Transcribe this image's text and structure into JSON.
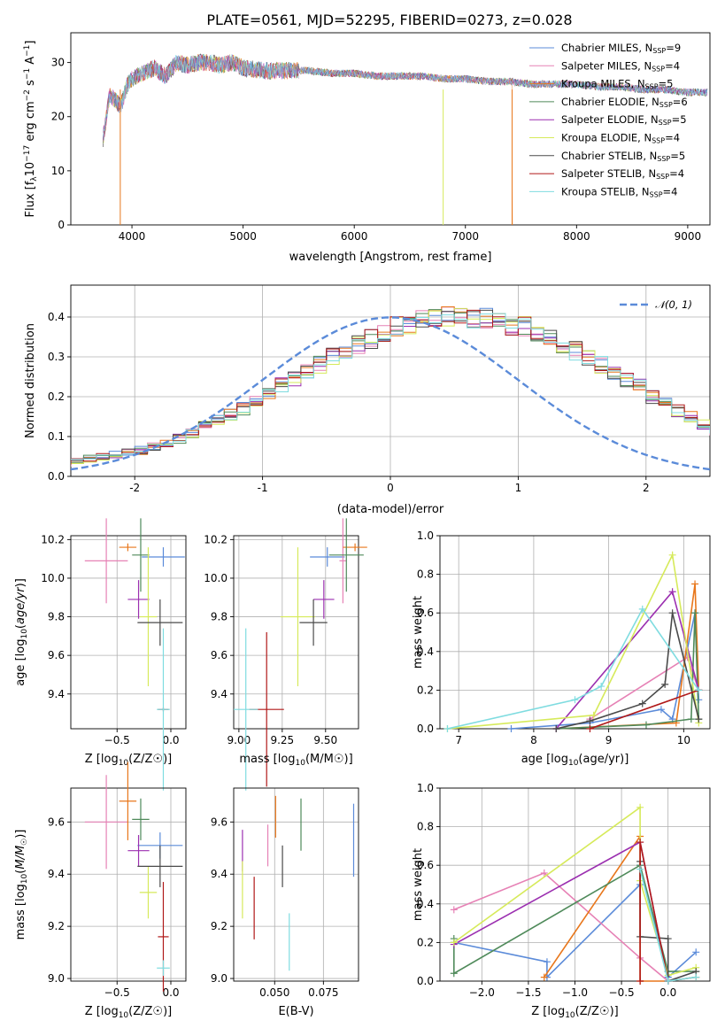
{
  "figure_title": "PLATE=0561, MJD=52295, FIBERID=0273, z=0.028",
  "colors": {
    "chabrier_miles": "#5b8bd9",
    "salpeter_miles": "#e681b5",
    "kroupa_miles": "#e8771c",
    "chabrier_elodie": "#4f8a5a",
    "salpeter_elodie": "#9b2fb0",
    "kroupa_elodie": "#d6ea5a",
    "chabrier_stelib": "#4a4a4a",
    "salpeter_stelib": "#b01818",
    "kroupa_stelib": "#7fdce0",
    "gaussian": "#5b8bd9",
    "data": "#808080"
  },
  "chart_data": [
    {
      "id": "spectrum",
      "type": "line",
      "xlabel": "wavelength [Angstrom, rest frame]",
      "ylabel": "Flux [f_λ 10^{-17} erg cm^{-2} s^{-1} A^{-1}]",
      "xlim": [
        3450,
        9200
      ],
      "ylim": [
        0,
        35.5
      ],
      "xticks": [
        4000,
        5000,
        6000,
        7000,
        8000,
        9000
      ],
      "yticks": [
        0,
        10,
        20,
        30
      ],
      "legend_position": "upper right",
      "legend": [
        {
          "label": "Chabrier MILES, N",
          "sub": "SSP",
          "tail": "=9",
          "color_key": "chabrier_miles"
        },
        {
          "label": "Salpeter MILES, N",
          "sub": "SSP",
          "tail": "=4",
          "color_key": "salpeter_miles"
        },
        {
          "label": "Kroupa MILES, N",
          "sub": "SSP",
          "tail": "=5",
          "color_key": "kroupa_miles"
        },
        {
          "label": "Chabrier ELODIE, N",
          "sub": "SSP",
          "tail": "=6",
          "color_key": "chabrier_elodie"
        },
        {
          "label": "Salpeter ELODIE, N",
          "sub": "SSP",
          "tail": "=5",
          "color_key": "salpeter_elodie"
        },
        {
          "label": "Kroupa ELODIE, N",
          "sub": "SSP",
          "tail": "=4",
          "color_key": "kroupa_elodie"
        },
        {
          "label": "Chabrier STELIB, N",
          "sub": "SSP",
          "tail": "=5",
          "color_key": "chabrier_stelib"
        },
        {
          "label": "Salpeter STELIB, N",
          "sub": "SSP",
          "tail": "=4",
          "color_key": "salpeter_stelib"
        },
        {
          "label": "Kroupa STELIB, N",
          "sub": "SSP",
          "tail": "=4",
          "color_key": "kroupa_stelib"
        }
      ],
      "series_outline": {
        "x": [
          3740,
          3800,
          3900,
          3960,
          4000,
          4100,
          4200,
          4300,
          4400,
          4500,
          4600,
          4700,
          4800,
          4900,
          5000,
          5200,
          5400,
          5600,
          5800,
          6000,
          6200,
          6400,
          6600,
          6800,
          7000,
          7200,
          7400,
          7600,
          7800,
          8000,
          8200,
          8400,
          8600,
          8800,
          9000,
          9200
        ],
        "y": [
          16,
          24,
          22,
          26,
          27,
          28,
          29,
          27.5,
          30,
          29.5,
          30,
          30,
          29.5,
          30,
          29,
          28.5,
          28.5,
          28.5,
          28,
          28,
          27.5,
          27.5,
          27.5,
          27,
          27,
          26.5,
          26.5,
          26,
          26,
          26,
          25.5,
          25.5,
          25,
          25,
          24.5,
          24.5
        ]
      },
      "notable_features": [
        {
          "x": 3895,
          "y": 0,
          "note": "drop to zero (Kroupa MILES)"
        },
        {
          "x": 6800,
          "y": 0,
          "note": "drop to zero (Kroupa ELODIE)"
        },
        {
          "x": 7420,
          "y": 0,
          "note": "drop to zero (Kroupa MILES)"
        }
      ]
    },
    {
      "id": "residuals",
      "type": "step",
      "xlabel": "(data-model)/error",
      "ylabel": "Normed distribution",
      "xlim": [
        -2.5,
        2.5
      ],
      "ylim": [
        0,
        0.48
      ],
      "xticks": [
        -2,
        -1,
        0,
        1,
        2
      ],
      "yticks": [
        0.0,
        0.1,
        0.2,
        0.3,
        0.4
      ],
      "legend_position": "upper right",
      "legend_label": "𝒩(0, 1)",
      "gaussian": {
        "mean": 0,
        "sigma": 1
      },
      "bin_width": 0.1,
      "base_hist": [
        0.02,
        0.02,
        0.025,
        0.03,
        0.035,
        0.04,
        0.045,
        0.05,
        0.055,
        0.06,
        0.065,
        0.075,
        0.085,
        0.095,
        0.11,
        0.125,
        0.14,
        0.155,
        0.17,
        0.19,
        0.21,
        0.23,
        0.245,
        0.26,
        0.28,
        0.3,
        0.31,
        0.33,
        0.345,
        0.355,
        0.375,
        0.38,
        0.39,
        0.395,
        0.4,
        0.4,
        0.4,
        0.395,
        0.39,
        0.38,
        0.375,
        0.36,
        0.345,
        0.33,
        0.315,
        0.3,
        0.28,
        0.26,
        0.24,
        0.225,
        0.2,
        0.18,
        0.165,
        0.15,
        0.13,
        0.115,
        0.1,
        0.09,
        0.08,
        0.07,
        0.06,
        0.055,
        0.05,
        0.045,
        0.04,
        0.035,
        0.03,
        0.03,
        0.025,
        0.025
      ]
    },
    {
      "id": "age_vs_Z",
      "type": "errorbar",
      "xlabel_main": "Z [log",
      "xlabel_sub": "10",
      "xlabel_tail": "(Z/Z☉)]",
      "ylabel": "age [log10(age/yr)]",
      "xlim": [
        -0.93,
        0.14
      ],
      "ylim": [
        9.22,
        10.22
      ],
      "xticks": [
        -0.5,
        0.0
      ],
      "xtick_labels": [
        "−0.5",
        "0.0"
      ],
      "yticks": [
        9.4,
        9.6,
        9.8,
        10.0,
        10.2
      ],
      "points": [
        {
          "color_key": "chabrier_miles",
          "x": -0.07,
          "y": 10.11,
          "xerr": 0.2,
          "yerr": 0.05
        },
        {
          "color_key": "salpeter_miles",
          "x": -0.6,
          "y": 10.09,
          "xerr": 0.2,
          "yerr": 0.22
        },
        {
          "color_key": "kroupa_miles",
          "x": -0.4,
          "y": 10.16,
          "xerr": 0.08,
          "yerr": 0.02
        },
        {
          "color_key": "chabrier_elodie",
          "x": -0.28,
          "y": 10.12,
          "xerr": 0.08,
          "yerr": 0.19
        },
        {
          "color_key": "salpeter_elodie",
          "x": -0.3,
          "y": 9.89,
          "xerr": 0.1,
          "yerr": 0.1
        },
        {
          "color_key": "kroupa_elodie",
          "x": -0.21,
          "y": 9.8,
          "xerr": 0.08,
          "yerr": 0.36
        },
        {
          "color_key": "chabrier_stelib",
          "x": -0.1,
          "y": 9.77,
          "xerr": 0.21,
          "yerr": 0.12
        },
        {
          "color_key": "salpeter_stelib",
          "x": -0.07,
          "y": 9.32,
          "xerr": 0.05,
          "yerr": 0.01
        },
        {
          "color_key": "kroupa_stelib",
          "x": -0.07,
          "y": 9.32,
          "xerr": 0.06,
          "yerr": 0.42
        }
      ]
    },
    {
      "id": "age_vs_mass",
      "type": "errorbar",
      "xlabel_main": "mass [log",
      "xlabel_sub": "10",
      "xlabel_tail": "(M/M☉)]",
      "xlim": [
        8.97,
        9.69
      ],
      "ylim": [
        9.22,
        10.22
      ],
      "xticks": [
        9.0,
        9.25,
        9.5
      ],
      "xtick_labels": [
        "9.00",
        "9.25",
        "9.50"
      ],
      "yticks": [
        9.4,
        9.6,
        9.8,
        10.0,
        10.2
      ],
      "points": [
        {
          "color_key": "chabrier_miles",
          "x": 9.51,
          "y": 10.11,
          "xerr": 0.1,
          "yerr": 0.05
        },
        {
          "color_key": "salpeter_miles",
          "x": 9.6,
          "y": 10.09,
          "xerr": 0.02,
          "yerr": 0.22
        },
        {
          "color_key": "kroupa_miles",
          "x": 9.67,
          "y": 10.16,
          "xerr": 0.07,
          "yerr": 0.02
        },
        {
          "color_key": "chabrier_elodie",
          "x": 9.62,
          "y": 10.12,
          "xerr": 0.1,
          "yerr": 0.19
        },
        {
          "color_key": "salpeter_elodie",
          "x": 9.49,
          "y": 9.89,
          "xerr": 0.06,
          "yerr": 0.1
        },
        {
          "color_key": "kroupa_elodie",
          "x": 9.34,
          "y": 9.8,
          "xerr": 0.1,
          "yerr": 0.36
        },
        {
          "color_key": "chabrier_stelib",
          "x": 9.43,
          "y": 9.77,
          "xerr": 0.08,
          "yerr": 0.12
        },
        {
          "color_key": "salpeter_stelib",
          "x": 9.16,
          "y": 9.32,
          "xerr": 0.1,
          "yerr": 0.4
        },
        {
          "color_key": "kroupa_stelib",
          "x": 9.04,
          "y": 9.32,
          "xerr": 0.07,
          "yerr": 0.42
        }
      ]
    },
    {
      "id": "weight_vs_age",
      "type": "line",
      "xlabel_main": "age  [log",
      "xlabel_sub": "10",
      "xlabel_tail": "(age/yr)]",
      "ylabel": "mass weight",
      "xlim": [
        6.75,
        10.35
      ],
      "ylim": [
        0,
        1.0
      ],
      "xticks": [
        7,
        8,
        9,
        10
      ],
      "yticks": [
        0.0,
        0.2,
        0.4,
        0.6,
        0.8,
        1.0
      ],
      "series": [
        {
          "color_key": "chabrier_miles",
          "x": [
            7.7,
            8.75,
            9.7,
            9.85,
            10.15,
            10.2
          ],
          "y": [
            0.0,
            0.03,
            0.1,
            0.05,
            0.6,
            0.15
          ]
        },
        {
          "color_key": "salpeter_miles",
          "x": [
            8.75,
            10.05,
            10.2
          ],
          "y": [
            0.05,
            0.37,
            0.2
          ]
        },
        {
          "color_key": "kroupa_miles",
          "x": [
            8.3,
            9.9,
            10.15,
            10.2
          ],
          "y": [
            0.0,
            0.03,
            0.75,
            0.2
          ]
        },
        {
          "color_key": "chabrier_elodie",
          "x": [
            8.3,
            9.5,
            10.1,
            10.15,
            10.2
          ],
          "y": [
            0.0,
            0.02,
            0.05,
            0.6,
            0.05
          ]
        },
        {
          "color_key": "salpeter_elodie",
          "x": [
            8.3,
            9.85,
            10.2
          ],
          "y": [
            0.0,
            0.71,
            0.2
          ]
        },
        {
          "color_key": "kroupa_elodie",
          "x": [
            6.85,
            8.8,
            9.85,
            10.2
          ],
          "y": [
            0.0,
            0.07,
            0.9,
            0.03
          ]
        },
        {
          "color_key": "chabrier_stelib",
          "x": [
            8.3,
            8.75,
            9.45,
            9.75,
            9.85,
            10.2
          ],
          "y": [
            0.0,
            0.04,
            0.13,
            0.23,
            0.6,
            0.05
          ]
        },
        {
          "color_key": "salpeter_stelib",
          "x": [
            8.75,
            10.2
          ],
          "y": [
            0.0,
            0.2
          ]
        },
        {
          "color_key": "kroupa_stelib",
          "x": [
            6.85,
            8.55,
            8.9,
            9.45,
            10.2
          ],
          "y": [
            0.0,
            0.15,
            0.22,
            0.62,
            0.2
          ]
        }
      ]
    },
    {
      "id": "mass_vs_Z",
      "type": "errorbar",
      "xlabel_main": "Z [log",
      "xlabel_sub": "10",
      "xlabel_tail": "(Z/Z☉)]",
      "ylabel": "mass [log10(M/M☉)]",
      "xlim": [
        -0.93,
        0.14
      ],
      "ylim": [
        8.99,
        9.73
      ],
      "xticks": [
        -0.5,
        0.0
      ],
      "xtick_labels": [
        "−0.5",
        "0.0"
      ],
      "yticks": [
        9.0,
        9.2,
        9.4,
        9.6
      ],
      "points": [
        {
          "color_key": "chabrier_miles",
          "x": -0.1,
          "y": 9.51,
          "xerr": 0.21,
          "yerr": 0.05
        },
        {
          "color_key": "salpeter_miles",
          "x": -0.6,
          "y": 9.6,
          "xerr": 0.2,
          "yerr": 0.18
        },
        {
          "color_key": "kroupa_miles",
          "x": -0.4,
          "y": 9.68,
          "xerr": 0.08,
          "yerr": 0.15
        },
        {
          "color_key": "chabrier_elodie",
          "x": -0.28,
          "y": 9.61,
          "xerr": 0.08,
          "yerr": 0.08
        },
        {
          "color_key": "salpeter_elodie",
          "x": -0.3,
          "y": 9.49,
          "xerr": 0.1,
          "yerr": 0.06
        },
        {
          "color_key": "kroupa_elodie",
          "x": -0.21,
          "y": 9.33,
          "xerr": 0.08,
          "yerr": 0.1
        },
        {
          "color_key": "chabrier_stelib",
          "x": -0.1,
          "y": 9.43,
          "xerr": 0.21,
          "yerr": 0.08
        },
        {
          "color_key": "salpeter_stelib",
          "x": -0.07,
          "y": 9.16,
          "xerr": 0.05,
          "yerr": 0.21
        },
        {
          "color_key": "kroupa_stelib",
          "x": -0.07,
          "y": 9.04,
          "xerr": 0.06,
          "yerr": 0.03
        }
      ]
    },
    {
      "id": "mass_vs_EBV",
      "type": "errorbar",
      "xlabel": "E(B-V)",
      "xlim": [
        0.029,
        0.093
      ],
      "ylim": [
        8.99,
        9.73
      ],
      "xticks": [
        0.05,
        0.075
      ],
      "xtick_labels": [
        "0.050",
        "0.075"
      ],
      "yticks": [
        9.0,
        9.2,
        9.4,
        9.6
      ],
      "points": [
        {
          "color_key": "chabrier_miles",
          "x": 0.0905,
          "y": 9.53,
          "xerr": 0.0,
          "yerr": 0.14
        },
        {
          "color_key": "salpeter_miles",
          "x": 0.0465,
          "y": 9.51,
          "xerr": 0.0,
          "yerr": 0.08
        },
        {
          "color_key": "kroupa_miles",
          "x": 0.0505,
          "y": 9.62,
          "xerr": 0.0,
          "yerr": 0.08
        },
        {
          "color_key": "chabrier_elodie",
          "x": 0.0635,
          "y": 9.59,
          "xerr": 0.0,
          "yerr": 0.1
        },
        {
          "color_key": "salpeter_elodie",
          "x": 0.0335,
          "y": 9.49,
          "xerr": 0.0,
          "yerr": 0.08
        },
        {
          "color_key": "kroupa_elodie",
          "x": 0.0335,
          "y": 9.34,
          "xerr": 0.0,
          "yerr": 0.11
        },
        {
          "color_key": "chabrier_stelib",
          "x": 0.054,
          "y": 9.43,
          "xerr": 0.0,
          "yerr": 0.08
        },
        {
          "color_key": "salpeter_stelib",
          "x": 0.0395,
          "y": 9.27,
          "xerr": 0.0,
          "yerr": 0.12
        },
        {
          "color_key": "kroupa_stelib",
          "x": 0.0575,
          "y": 9.14,
          "xerr": 0.0,
          "yerr": 0.11
        }
      ]
    },
    {
      "id": "weight_vs_Z",
      "type": "line",
      "xlabel_main": "Z [log",
      "xlabel_sub": "10",
      "xlabel_tail": "(Z/Z☉)]",
      "ylabel": "mass weight",
      "xlim": [
        -2.45,
        0.45
      ],
      "ylim": [
        0,
        1.0
      ],
      "xticks": [
        -2.0,
        -1.5,
        -1.0,
        -0.5,
        0.0
      ],
      "xtick_labels": [
        "−2.0",
        "−1.5",
        "−1.0",
        "−0.5",
        "0.0"
      ],
      "yticks": [
        0.0,
        0.2,
        0.4,
        0.6,
        0.8,
        1.0
      ],
      "series": [
        {
          "color_key": "chabrier_miles",
          "x": [
            -2.3,
            -1.3,
            -1.3,
            -0.3,
            -0.3,
            0.0,
            0.0,
            0.3
          ],
          "y": [
            0.2,
            0.1,
            0.02,
            0.5,
            0.6,
            0.02,
            0.02,
            0.15
          ]
        },
        {
          "color_key": "salpeter_miles",
          "x": [
            -2.3,
            -1.33,
            -0.3,
            0.0,
            0.3
          ],
          "y": [
            0.37,
            0.56,
            0.12,
            0.0,
            0.02
          ]
        },
        {
          "color_key": "kroupa_miles",
          "x": [
            -1.33,
            -0.3,
            -0.3,
            0.0,
            0.3
          ],
          "y": [
            0.02,
            0.75,
            0.0,
            0.0,
            0.02
          ]
        },
        {
          "color_key": "chabrier_elodie",
          "x": [
            -2.3,
            -2.3,
            -0.3,
            0.0,
            0.3
          ],
          "y": [
            0.22,
            0.04,
            0.6,
            0.05,
            0.05
          ]
        },
        {
          "color_key": "salpeter_elodie",
          "x": [
            -2.3,
            -0.3,
            0.0
          ],
          "y": [
            0.19,
            0.72,
            0.0
          ]
        },
        {
          "color_key": "kroupa_elodie",
          "x": [
            -2.3,
            -0.3,
            -0.3,
            0.0,
            0.3
          ],
          "y": [
            0.2,
            0.9,
            0.52,
            0.03,
            0.07
          ]
        },
        {
          "color_key": "chabrier_stelib",
          "x": [
            -0.3,
            -0.3,
            0.0,
            0.0,
            0.3
          ],
          "y": [
            0.62,
            0.23,
            0.22,
            0.0,
            0.05
          ]
        },
        {
          "color_key": "salpeter_stelib",
          "x": [
            -0.3,
            -0.3,
            0.0
          ],
          "y": [
            0.0,
            0.72,
            0.0
          ]
        },
        {
          "color_key": "kroupa_stelib",
          "x": [
            -0.3,
            0.0,
            0.3
          ],
          "y": [
            0.58,
            0.0,
            0.02
          ]
        }
      ]
    }
  ]
}
